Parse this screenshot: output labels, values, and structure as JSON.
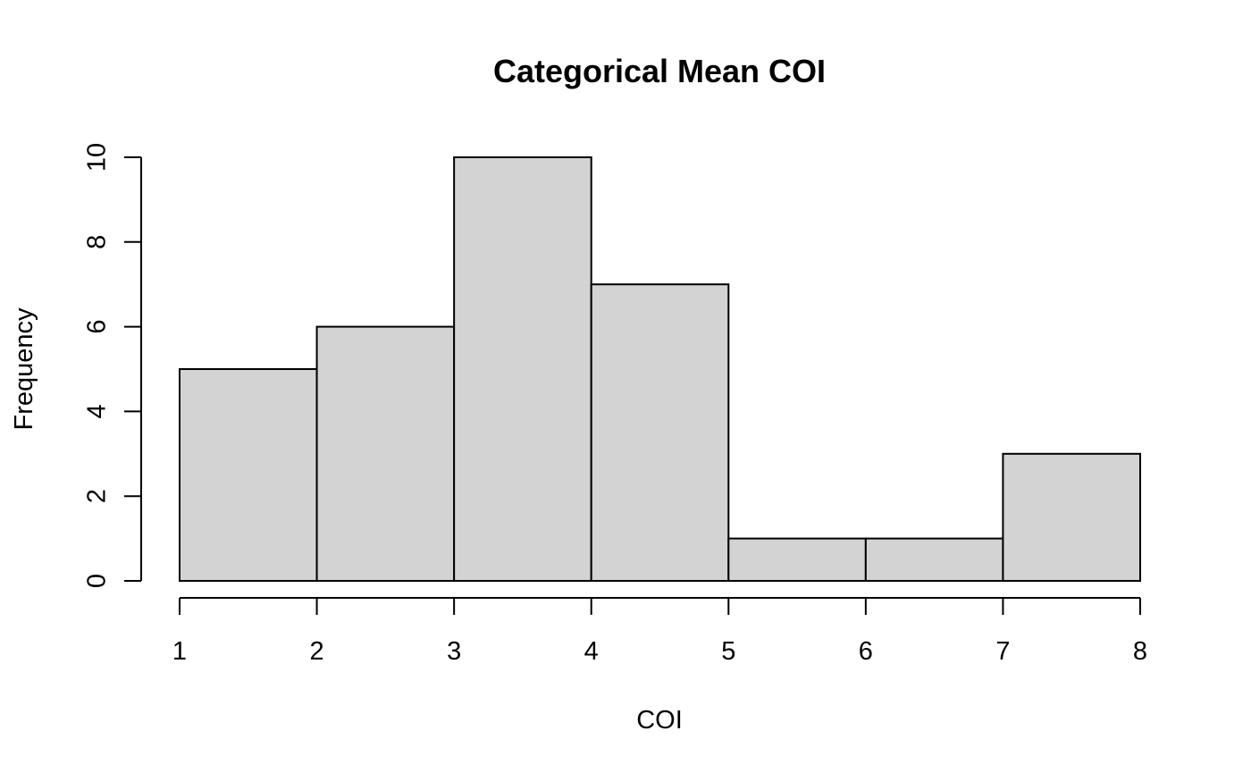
{
  "chart_data": {
    "type": "bar",
    "histogram": true,
    "title": "Categorical Mean COI",
    "xlabel": "COI",
    "ylabel": "Frequency",
    "bins": [
      {
        "from": 1,
        "to": 2,
        "count": 5
      },
      {
        "from": 2,
        "to": 3,
        "count": 6
      },
      {
        "from": 3,
        "to": 4,
        "count": 10
      },
      {
        "from": 4,
        "to": 5,
        "count": 7
      },
      {
        "from": 5,
        "to": 6,
        "count": 1
      },
      {
        "from": 6,
        "to": 7,
        "count": 1
      },
      {
        "from": 7,
        "to": 8,
        "count": 3
      }
    ],
    "xlim": [
      1,
      8
    ],
    "ylim": [
      0,
      10
    ],
    "x_ticks": [
      "1",
      "2",
      "3",
      "4",
      "5",
      "6",
      "7",
      "8"
    ],
    "y_ticks": [
      "0",
      "2",
      "4",
      "6",
      "8",
      "10"
    ],
    "bar_color": "#d3d3d3",
    "bar_border_color": "#000000",
    "grid": false,
    "legend": "none"
  }
}
